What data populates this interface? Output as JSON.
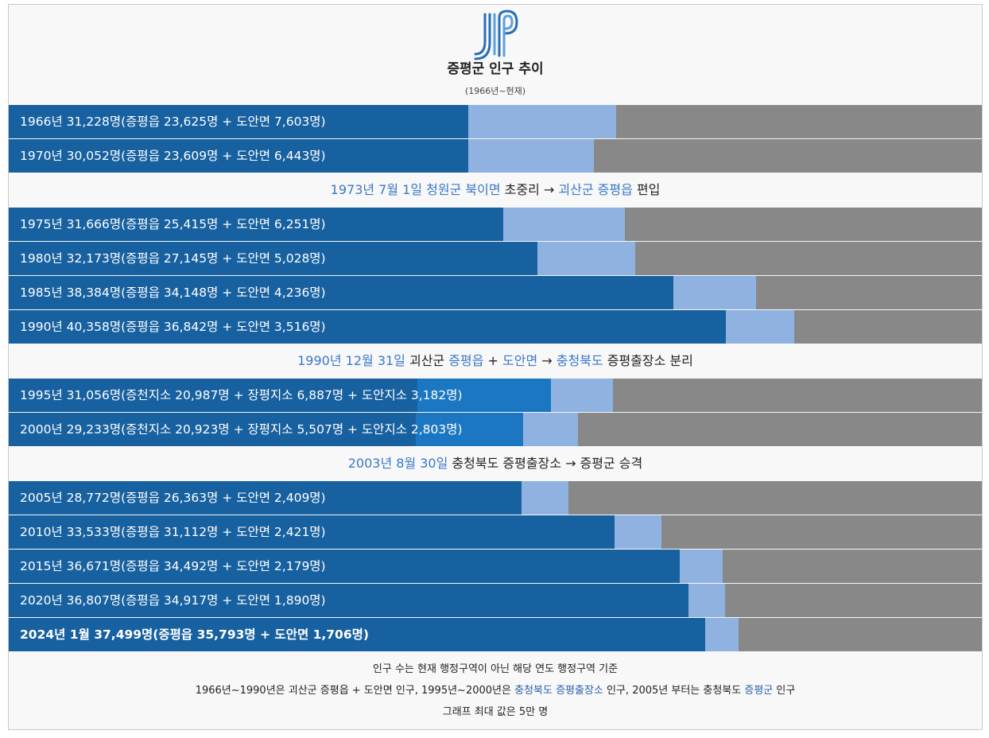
{
  "header": {
    "title": "증평군 인구 추이",
    "subtitle": "(1966년~현재)"
  },
  "colors": {
    "main": "#1861a0",
    "sub_mid": "#1c77c3",
    "sub": "#8fb2e0",
    "rest": "#888888",
    "note_accent": "#3a78c8"
  },
  "chart_data": {
    "type": "bar",
    "orientation": "horizontal-stacked",
    "xlim": [
      0,
      50000
    ],
    "rows": [
      {
        "kind": "bar",
        "label": "1966년 31,228명(증평읍 23,625명 + 도안면 7,603명)",
        "year": "1966",
        "total": 31228,
        "parts": [
          23625,
          7603
        ]
      },
      {
        "kind": "bar",
        "label": "1970년 30,052명(증평읍 23,609명 + 도안면 6,443명)",
        "year": "1970",
        "total": 30052,
        "parts": [
          23609,
          6443
        ]
      },
      {
        "kind": "note",
        "segments": [
          {
            "text": "1973년 7월 1일 청원군 북이면",
            "blue": true
          },
          {
            "text": " 초중리 → ",
            "blue": false
          },
          {
            "text": "괴산군 증평읍",
            "blue": true
          },
          {
            "text": " 편입",
            "blue": false
          }
        ]
      },
      {
        "kind": "bar",
        "label": "1975년 31,666명(증평읍 25,415명 + 도안면 6,251명)",
        "year": "1975",
        "total": 31666,
        "parts": [
          25415,
          6251
        ]
      },
      {
        "kind": "bar",
        "label": "1980년 32,173명(증평읍 27,145명 + 도안면 5,028명)",
        "year": "1980",
        "total": 32173,
        "parts": [
          27145,
          5028
        ]
      },
      {
        "kind": "bar",
        "label": "1985년 38,384명(증평읍 34,148명 + 도안면 4,236명)",
        "year": "1985",
        "total": 38384,
        "parts": [
          34148,
          4236
        ]
      },
      {
        "kind": "bar",
        "label": "1990년 40,358명(증평읍 36,842명 + 도안면 3,516명)",
        "year": "1990",
        "total": 40358,
        "parts": [
          36842,
          3516
        ]
      },
      {
        "kind": "note",
        "segments": [
          {
            "text": "1990년 12월 31일",
            "blue": true
          },
          {
            "text": " 괴산군 ",
            "blue": false
          },
          {
            "text": "증평읍",
            "blue": true
          },
          {
            "text": " + ",
            "blue": false
          },
          {
            "text": "도안면",
            "blue": true
          },
          {
            "text": " → ",
            "blue": false
          },
          {
            "text": "충청북도",
            "blue": true
          },
          {
            "text": " 증평출장소 분리",
            "blue": false
          }
        ]
      },
      {
        "kind": "bar",
        "label": "1995년 31,056명(증천지소 20,987명 + 장평지소 6,887명 + 도안지소 3,182명)",
        "year": "1995",
        "total": 31056,
        "parts": [
          20987,
          6887,
          3182
        ]
      },
      {
        "kind": "bar",
        "label": "2000년 29,233명(증천지소 20,923명 + 장평지소 5,507명 + 도안지소 2,803명)",
        "year": "2000",
        "total": 29233,
        "parts": [
          20923,
          5507,
          2803
        ]
      },
      {
        "kind": "note",
        "segments": [
          {
            "text": "2003년 8월 30일",
            "blue": true
          },
          {
            "text": " 충청북도 증평출장소 → 증평군 승격",
            "blue": false
          }
        ]
      },
      {
        "kind": "bar",
        "label": "2005년 28,772명(증평읍 26,363명 + 도안면 2,409명)",
        "year": "2005",
        "total": 28772,
        "parts": [
          26363,
          2409
        ]
      },
      {
        "kind": "bar",
        "label": "2010년 33,533명(증평읍 31,112명 + 도안면 2,421명)",
        "year": "2010",
        "total": 33533,
        "parts": [
          31112,
          2421
        ]
      },
      {
        "kind": "bar",
        "label": "2015년 36,671명(증평읍 34,492명 + 도안면 2,179명)",
        "year": "2015",
        "total": 36671,
        "parts": [
          34492,
          2179
        ]
      },
      {
        "kind": "bar",
        "label": "2020년 36,807명(증평읍 34,917명 + 도안면 1,890명)",
        "year": "2020",
        "total": 36807,
        "parts": [
          34917,
          1890
        ]
      },
      {
        "kind": "bar",
        "label": "2024년 1월 37,499명(증평읍 35,793명 + 도안면 1,706명)",
        "year": "2024",
        "total": 37499,
        "parts": [
          35793,
          1706
        ],
        "bold": true
      }
    ]
  },
  "footer": {
    "line1": "인구 수는 현재 행정구역이 아닌 해당 연도 행정구역 기준",
    "line2_segments": [
      {
        "text": "1966년~1990년은 괴산군 증평읍 + 도안면 인구, 1995년~2000년은 ",
        "blue": false
      },
      {
        "text": "충청북도 증평출장소",
        "blue": true
      },
      {
        "text": " 인구, 2005년 부터는 충청북도 ",
        "blue": false
      },
      {
        "text": "증평군",
        "blue": true
      },
      {
        "text": " 인구",
        "blue": false
      }
    ],
    "line3": "그래프 최대 값은 5만 명"
  }
}
